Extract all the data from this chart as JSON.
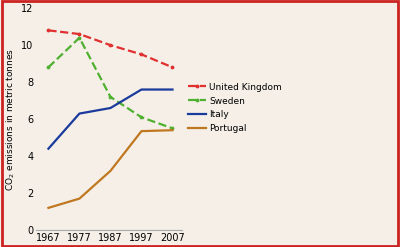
{
  "years": [
    1967,
    1977,
    1987,
    1997,
    2007
  ],
  "united_kingdom": [
    10.8,
    10.6,
    10.0,
    9.5,
    8.8
  ],
  "sweden": [
    8.8,
    10.4,
    7.2,
    6.1,
    5.5
  ],
  "italy": [
    4.4,
    6.3,
    6.6,
    7.6,
    7.6
  ],
  "portugal": [
    1.2,
    1.7,
    3.2,
    5.35,
    5.4
  ],
  "uk_color": "#e03030",
  "sweden_color": "#50b030",
  "italy_color": "#1a3a9c",
  "portugal_color": "#c07820",
  "background_color": "#f5efe8",
  "ylabel": "CO$_2$ emissions in metric tonnes",
  "ylim": [
    0,
    12
  ],
  "yticks": [
    0,
    2,
    4,
    6,
    8,
    10,
    12
  ],
  "xlim": [
    1963,
    2010
  ],
  "xticks": [
    1967,
    1977,
    1987,
    1997,
    2007
  ],
  "legend_labels": [
    "United Kingdom",
    "Sweden",
    "Italy",
    "Portugal"
  ],
  "linewidth": 1.6,
  "border_color": "#cc2222"
}
